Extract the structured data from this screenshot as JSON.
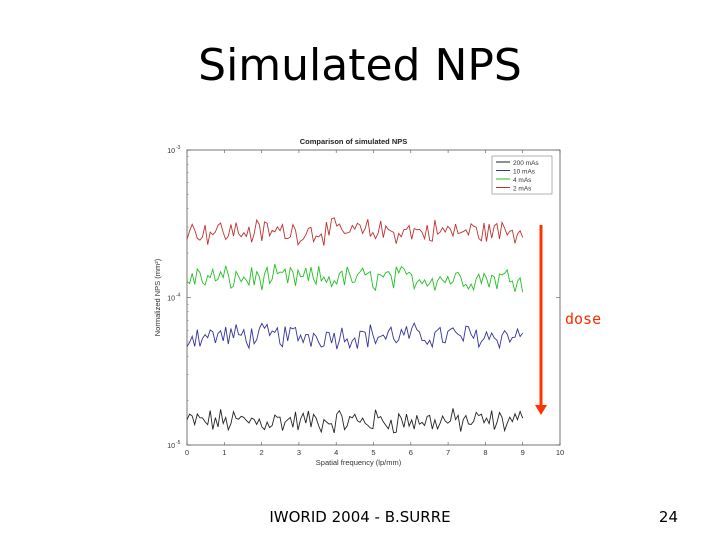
{
  "slide": {
    "title": "Simulated NPS",
    "dose_label": "dose",
    "footer": "IWORID 2004 - B.SURRE",
    "page_number": "24"
  },
  "chart_data": {
    "type": "line",
    "title": "Comparison of simulated NPS",
    "xlabel": "Spatial frequency (lp/mm)",
    "ylabel": "Normalized NPS (mm²)",
    "xlim": [
      0,
      10
    ],
    "ylim": [
      1e-05,
      0.001
    ],
    "y_scale": "log",
    "x_ticks": [
      "0",
      "1",
      "2",
      "3",
      "4",
      "5",
      "6",
      "7",
      "8",
      "9",
      "10"
    ],
    "y_ticks": [
      {
        "value": 0.001,
        "base": "10",
        "exp": "-3"
      },
      {
        "value": 0.0001,
        "base": "10",
        "exp": "-4"
      },
      {
        "value": 1e-05,
        "base": "10",
        "exp": "-5"
      }
    ],
    "legend_position": "top-right",
    "grid": false,
    "x_range_of_data": [
      0,
      9
    ],
    "series": [
      {
        "name": "200 mAs",
        "color": "#222222",
        "level": 1.45e-05
      },
      {
        "name": "10 mAs",
        "color": "#33339a",
        "level": 5.5e-05
      },
      {
        "name": "4 mAs",
        "color": "#22c022",
        "level": 0.000135
      },
      {
        "name": "2 mAs",
        "color": "#c03030",
        "level": 0.00028
      }
    ],
    "annotation": {
      "type": "arrow",
      "color": "#ff3300",
      "direction": "down",
      "label": "dose"
    }
  }
}
